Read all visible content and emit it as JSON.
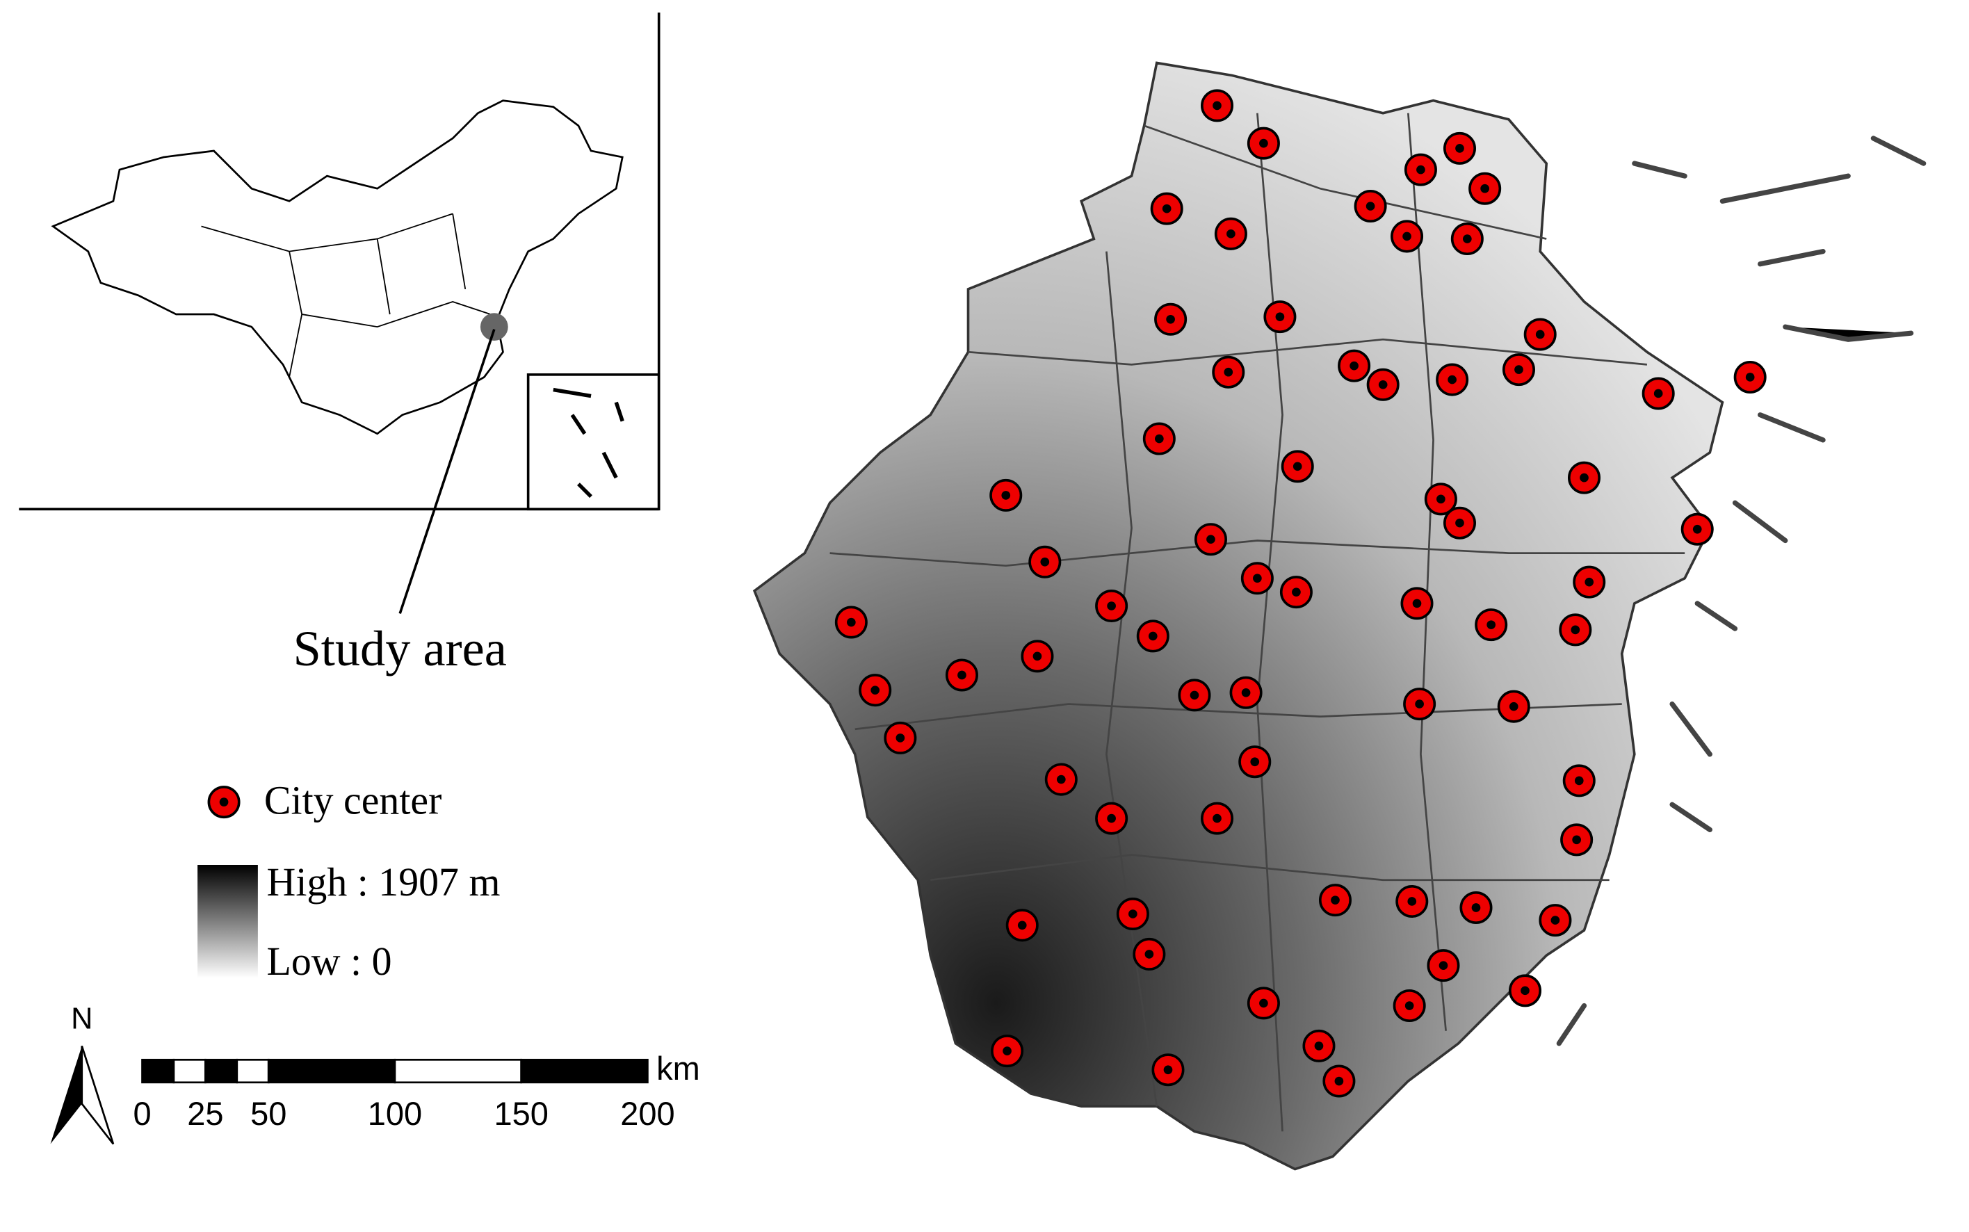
{
  "inset": {
    "label": "Study area"
  },
  "legend": {
    "city_center": "City center",
    "high": "High : 1907 m",
    "low": "Low : 0"
  },
  "north_arrow": {
    "label": "N"
  },
  "scale_bar": {
    "unit": "km",
    "ticks": [
      0,
      25,
      50,
      100,
      150,
      200
    ]
  }
}
